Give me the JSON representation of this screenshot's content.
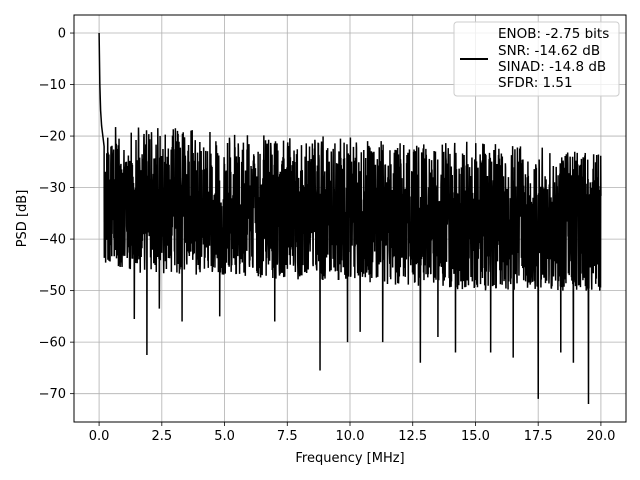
{
  "chart_data": {
    "type": "line",
    "title": "",
    "xlabel": "Frequency [MHz]",
    "ylabel": "PSD [dB]",
    "xlim": [
      -1.0,
      21.0
    ],
    "ylim": [
      -75.5,
      3.5
    ],
    "xticks": [
      0.0,
      2.5,
      5.0,
      7.5,
      10.0,
      12.5,
      15.0,
      17.5,
      20.0
    ],
    "xtick_labels": [
      "0.0",
      "2.5",
      "5.0",
      "7.5",
      "10.0",
      "12.5",
      "15.0",
      "17.5",
      "20.0"
    ],
    "yticks": [
      0,
      -10,
      -20,
      -30,
      -40,
      -50,
      -60,
      -70
    ],
    "ytick_labels": [
      "0",
      "−10",
      "−20",
      "−30",
      "−40",
      "−50",
      "−60",
      "−70"
    ],
    "grid": true,
    "legend_position": "top-right",
    "legend": [
      "ENOB: -2.75 bits",
      "SNR: -14.62 dB",
      "SINAD: -14.8 dB",
      "SFDR: 1.51"
    ],
    "line_color": "#000000",
    "series": [
      {
        "x": [
          0.0,
          0.03,
          0.06,
          0.1,
          0.15,
          0.2,
          0.3,
          0.5,
          0.8,
          1.2,
          1.5,
          1.9,
          2.5,
          3.2,
          4.0,
          4.9,
          5.8,
          6.8,
          7.8,
          8.8,
          9.9,
          11.0,
          12.3,
          13.5,
          14.6,
          15.7,
          16.8,
          17.5,
          18.2,
          19.0,
          19.6,
          20.0
        ],
        "y": [
          0.0,
          -10,
          -15,
          -18,
          -20,
          -22,
          -25,
          -28,
          -30,
          -31,
          -33,
          -33,
          -33,
          -33,
          -33,
          -33,
          -34,
          -34,
          -34,
          -34.5,
          -34.5,
          -34.5,
          -34.5,
          -34.5,
          -35,
          -35,
          -35,
          -35,
          -35,
          -35,
          -35,
          -35
        ]
      }
    ],
    "noise_band": {
      "upper_envelope": [
        [
          0.2,
          -18
        ],
        [
          2.0,
          -18
        ],
        [
          5.0,
          -19
        ],
        [
          8.0,
          -20
        ],
        [
          10.0,
          -20
        ],
        [
          12.0,
          -21
        ],
        [
          15.0,
          -21
        ],
        [
          18.0,
          -22
        ],
        [
          20.0,
          -23
        ]
      ],
      "lower_envelope": [
        [
          0.2,
          -45
        ],
        [
          2.0,
          -47
        ],
        [
          5.0,
          -47
        ],
        [
          8.0,
          -48
        ],
        [
          10.0,
          -48
        ],
        [
          12.0,
          -49
        ],
        [
          15.0,
          -50
        ],
        [
          18.0,
          -50
        ],
        [
          20.0,
          -51
        ]
      ]
    },
    "notable_dips": [
      [
        0.35,
        -44
      ],
      [
        1.4,
        -55.5
      ],
      [
        1.9,
        -62.5
      ],
      [
        2.4,
        -53.5
      ],
      [
        3.3,
        -56
      ],
      [
        4.8,
        -55
      ],
      [
        7.0,
        -56
      ],
      [
        8.8,
        -65.5
      ],
      [
        9.9,
        -60
      ],
      [
        10.4,
        -58
      ],
      [
        11.3,
        -60
      ],
      [
        12.8,
        -64
      ],
      [
        13.5,
        -59
      ],
      [
        14.2,
        -62
      ],
      [
        15.6,
        -62
      ],
      [
        16.5,
        -63
      ],
      [
        17.5,
        -71
      ],
      [
        18.4,
        -62
      ],
      [
        18.9,
        -64
      ],
      [
        19.5,
        -72
      ],
      [
        19.95,
        -50
      ]
    ]
  }
}
